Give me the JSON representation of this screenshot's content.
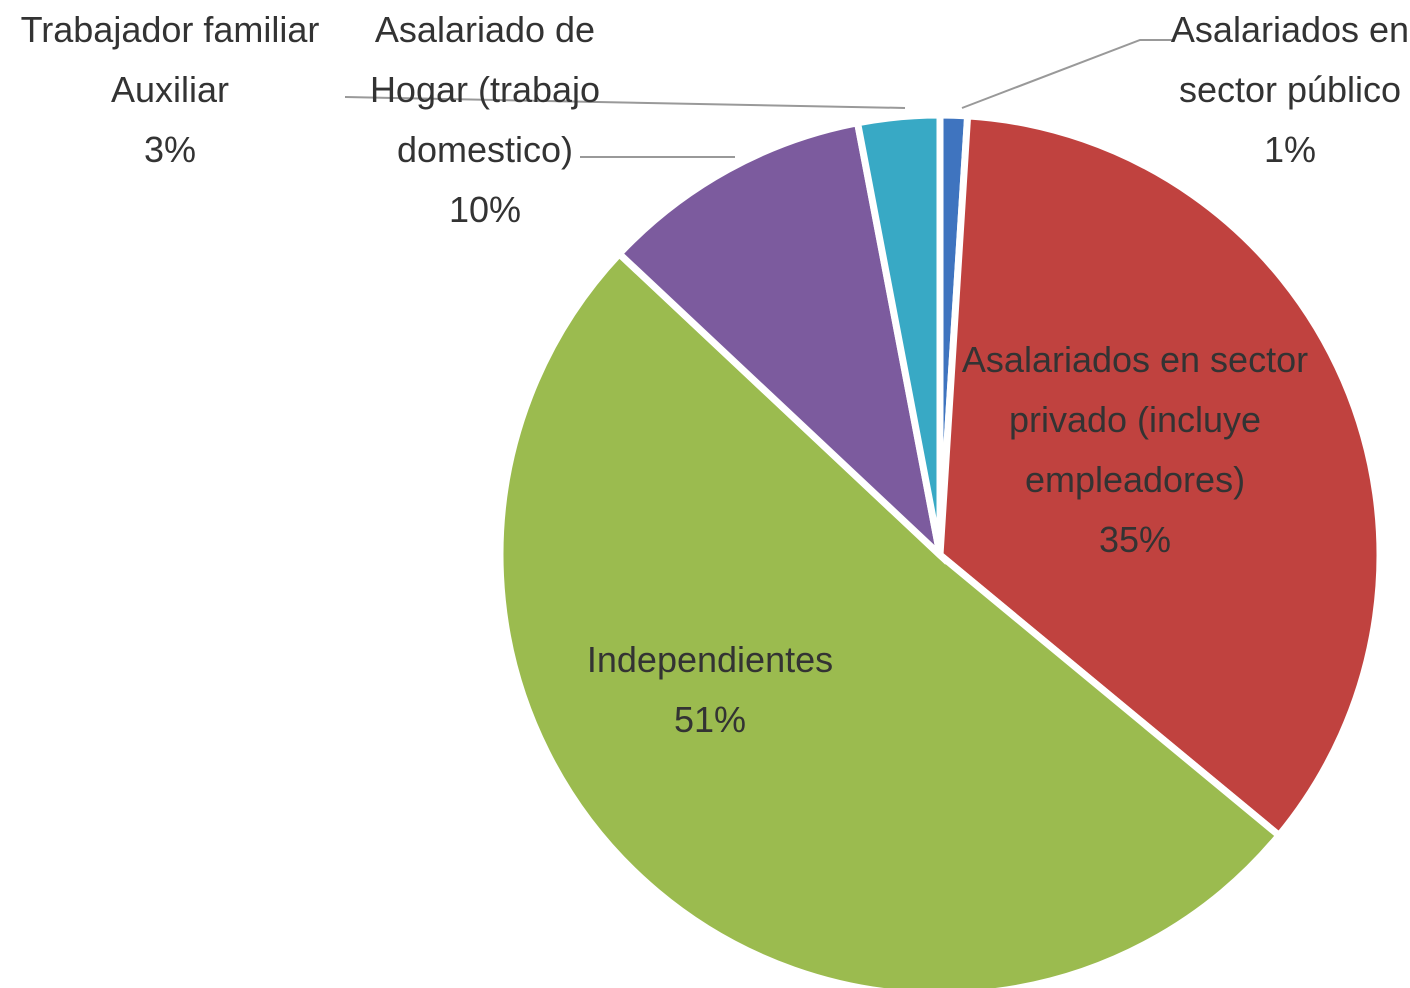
{
  "chart_data": {
    "type": "pie",
    "categories": [
      "Asalariados en sector público",
      "Asalariados en sector privado (incluye empleadores)",
      "Independientes",
      "Asalariado de Hogar (trabajo domestico)",
      "Trabajador familiar Auxiliar"
    ],
    "values": [
      1,
      35,
      51,
      10,
      3
    ],
    "value_labels": [
      "1%",
      "35%",
      "51%",
      "10%",
      "3%"
    ],
    "colors": [
      "#3f74bf",
      "#c0423f",
      "#9bbb4f",
      "#7c5b9e",
      "#38a9c5"
    ]
  }
}
